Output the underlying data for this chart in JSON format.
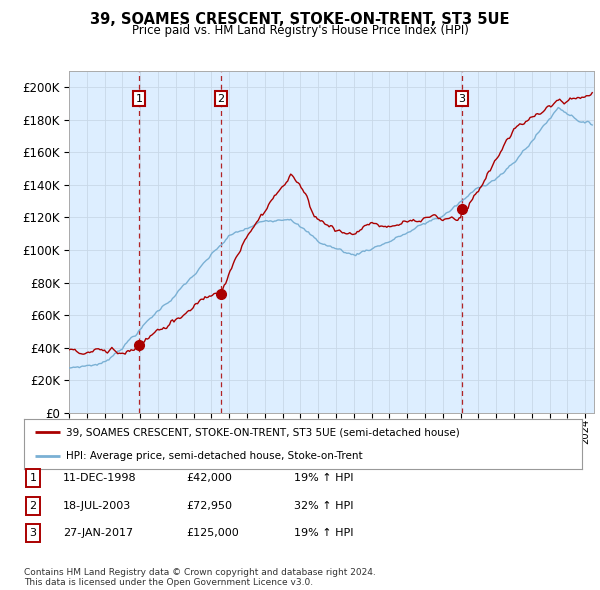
{
  "title": "39, SOAMES CRESCENT, STOKE-ON-TRENT, ST3 5UE",
  "subtitle": "Price paid vs. HM Land Registry's House Price Index (HPI)",
  "sale_year_nums": [
    1998.94,
    2003.54,
    2017.08
  ],
  "sale_prices": [
    42000,
    72950,
    125000
  ],
  "sale_labels": [
    "1",
    "2",
    "3"
  ],
  "sale_label_text": [
    "11-DEC-1998",
    "18-JUL-2003",
    "27-JAN-2017"
  ],
  "sale_price_text": [
    "£42,000",
    "£72,950",
    "£125,000"
  ],
  "sale_hpi_text": [
    "19% ↑ HPI",
    "32% ↑ HPI",
    "19% ↑ HPI"
  ],
  "red_line_color": "#aa0000",
  "blue_line_color": "#7ab0d4",
  "grid_color": "#cccccc",
  "chart_bg_color": "#ddeeff",
  "background_color": "#ffffff",
  "legend_label_red": "39, SOAMES CRESCENT, STOKE-ON-TRENT, ST3 5UE (semi-detached house)",
  "legend_label_blue": "HPI: Average price, semi-detached house, Stoke-on-Trent",
  "footnote": "Contains HM Land Registry data © Crown copyright and database right 2024.\nThis data is licensed under the Open Government Licence v3.0."
}
